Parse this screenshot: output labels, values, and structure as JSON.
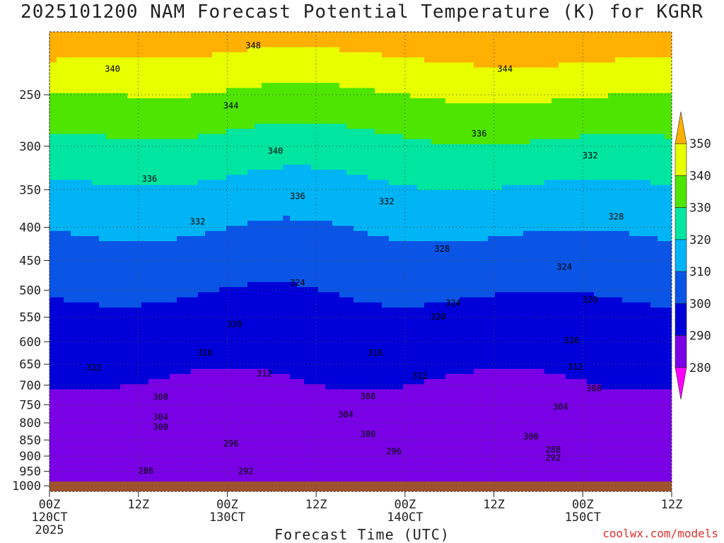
{
  "title": "2025101200 NAM Forecast Potential Temperature (K) for KGRR",
  "credit": "coolwx.com/models",
  "chart_data": {
    "type": "contour",
    "title": "2025101200 NAM Forecast Potential Temperature (K) for KGRR",
    "xlabel": "Forecast Time (UTC)",
    "ylabel": "",
    "y_scale": "log",
    "y_inverted": true,
    "ylim": [
      1020,
      200
    ],
    "xlim": [
      0,
      84
    ],
    "x_ticks": [
      {
        "value": 0,
        "line1": "00Z",
        "line2": "120CT",
        "line3": "2025"
      },
      {
        "value": 12,
        "line1": "12Z",
        "line2": "",
        "line3": ""
      },
      {
        "value": 24,
        "line1": "00Z",
        "line2": "130CT",
        "line3": ""
      },
      {
        "value": 36,
        "line1": "12Z",
        "line2": "",
        "line3": ""
      },
      {
        "value": 48,
        "line1": "00Z",
        "line2": "140CT",
        "line3": ""
      },
      {
        "value": 60,
        "line1": "12Z",
        "line2": "",
        "line3": ""
      },
      {
        "value": 72,
        "line1": "00Z",
        "line2": "150CT",
        "line3": ""
      },
      {
        "value": 84,
        "line1": "12Z",
        "line2": "",
        "line3": ""
      }
    ],
    "y_ticks": [
      250,
      300,
      350,
      400,
      450,
      500,
      550,
      600,
      650,
      700,
      750,
      800,
      850,
      900,
      950,
      1000
    ],
    "grid": true,
    "colorbar": {
      "levels": [
        280,
        290,
        300,
        310,
        320,
        330,
        340,
        350
      ],
      "colors": [
        "#ff00ff",
        "#7a00e6",
        "#0000d9",
        "#0a55e6",
        "#00b4f5",
        "#00e6a0",
        "#4ee600",
        "#e8ff00",
        "#ffb000"
      ]
    },
    "ground_color": "#a0522d",
    "contour_labels": [
      {
        "text": "348",
        "x": 27.5,
        "p": 210
      },
      {
        "text": "340",
        "x": 8.5,
        "p": 228
      },
      {
        "text": "344",
        "x": 24.5,
        "p": 260
      },
      {
        "text": "344",
        "x": 61.5,
        "p": 228
      },
      {
        "text": "336",
        "x": 58,
        "p": 287
      },
      {
        "text": "340",
        "x": 30.5,
        "p": 305
      },
      {
        "text": "332",
        "x": 73,
        "p": 310
      },
      {
        "text": "336",
        "x": 13.5,
        "p": 337
      },
      {
        "text": "336",
        "x": 33.5,
        "p": 358
      },
      {
        "text": "332",
        "x": 45.5,
        "p": 365
      },
      {
        "text": "328",
        "x": 76.5,
        "p": 385
      },
      {
        "text": "332",
        "x": 20,
        "p": 392
      },
      {
        "text": "328",
        "x": 53,
        "p": 432
      },
      {
        "text": "324",
        "x": 69.5,
        "p": 460
      },
      {
        "text": "324",
        "x": 33.5,
        "p": 487
      },
      {
        "text": "324",
        "x": 54.5,
        "p": 523
      },
      {
        "text": "320",
        "x": 73,
        "p": 517
      },
      {
        "text": "320",
        "x": 52.5,
        "p": 549
      },
      {
        "text": "320",
        "x": 25,
        "p": 564
      },
      {
        "text": "316",
        "x": 70.5,
        "p": 597
      },
      {
        "text": "316",
        "x": 21,
        "p": 624
      },
      {
        "text": "316",
        "x": 44,
        "p": 624
      },
      {
        "text": "312",
        "x": 6,
        "p": 658
      },
      {
        "text": "312",
        "x": 29,
        "p": 672
      },
      {
        "text": "312",
        "x": 50,
        "p": 677
      },
      {
        "text": "312",
        "x": 71,
        "p": 656
      },
      {
        "text": "308",
        "x": 73.5,
        "p": 708
      },
      {
        "text": "308",
        "x": 15,
        "p": 730
      },
      {
        "text": "308",
        "x": 43,
        "p": 728
      },
      {
        "text": "304",
        "x": 69,
        "p": 756
      },
      {
        "text": "304",
        "x": 15,
        "p": 784
      },
      {
        "text": "304",
        "x": 40,
        "p": 777
      },
      {
        "text": "300",
        "x": 15,
        "p": 812
      },
      {
        "text": "300",
        "x": 43,
        "p": 833
      },
      {
        "text": "300",
        "x": 65,
        "p": 840
      },
      {
        "text": "296",
        "x": 24.5,
        "p": 861
      },
      {
        "text": "296",
        "x": 46.5,
        "p": 885
      },
      {
        "text": "288",
        "x": 68,
        "p": 880
      },
      {
        "text": "292",
        "x": 68,
        "p": 905
      },
      {
        "text": "288",
        "x": 13,
        "p": 948
      },
      {
        "text": "292",
        "x": 26.5,
        "p": 950
      }
    ]
  }
}
